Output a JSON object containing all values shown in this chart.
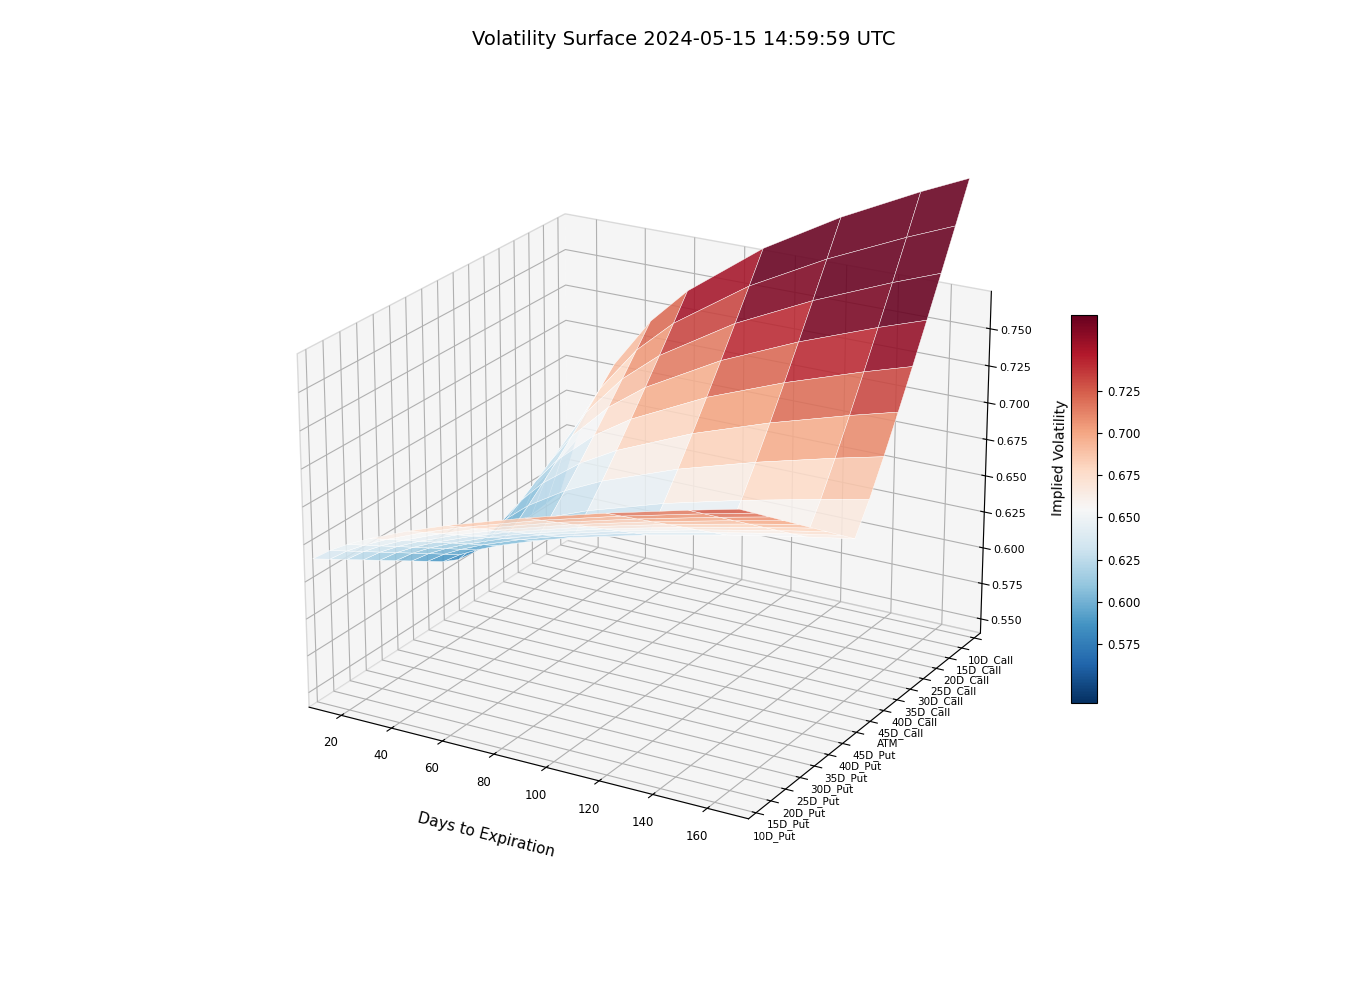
{
  "title": "Volatility Surface 2024-05-15 14:59:59 UTC",
  "xlabel": "Days to Expiration",
  "zlabel": "Implied Volatility",
  "strikes": [
    "10D_Call",
    "15D_Call",
    "20D_Call",
    "25D_Call",
    "30D_Call",
    "35D_Call",
    "40D_Call",
    "45D_Call",
    "ATM",
    "45D_Put",
    "40D_Put",
    "35D_Put",
    "30D_Put",
    "25D_Put",
    "20D_Put",
    "15D_Put",
    "10D_Put"
  ],
  "days": [
    7,
    14,
    21,
    30,
    45,
    60,
    90,
    120,
    150,
    168
  ],
  "zlim": [
    0.54,
    0.77
  ],
  "colormap": "RdBu_r",
  "figsize": [
    13.67,
    10.08
  ],
  "dpi": 100,
  "elev": 22,
  "azim": -60,
  "title_fontsize": 14,
  "pane_color": "#ececec"
}
